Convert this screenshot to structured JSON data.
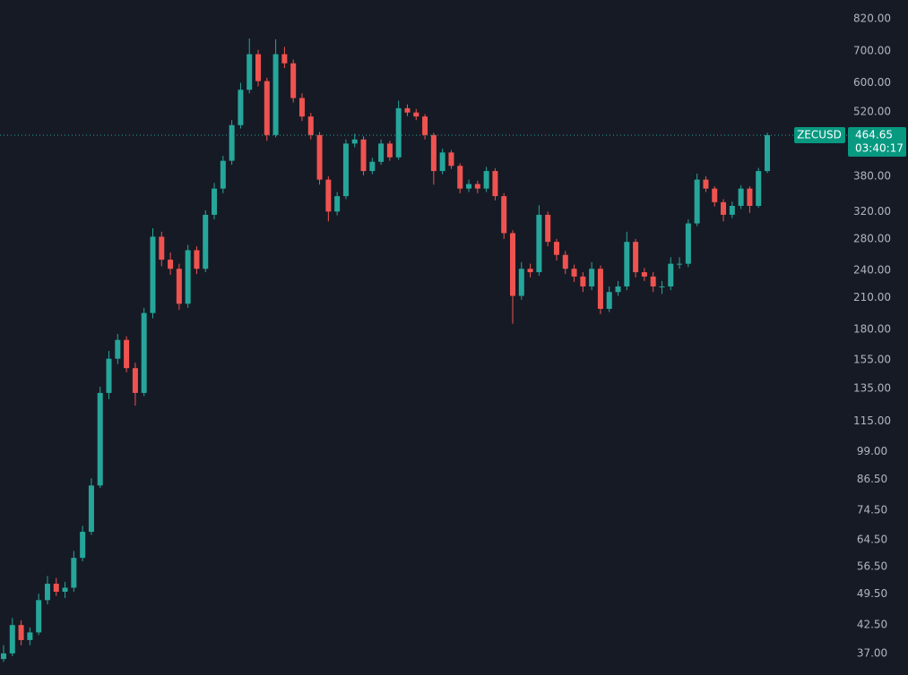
{
  "chart_data": {
    "type": "candlestick",
    "symbol": "ZECUSD",
    "countdown": "03:40:17",
    "last_price": 464.65,
    "log_scale": true,
    "grid": false,
    "up_color": "#26a69a",
    "down_color": "#ef5350",
    "ylim": [
      33.3,
      899
    ],
    "yticks": [
      {
        "value": 820,
        "label": "820.00"
      },
      {
        "value": 700,
        "label": "700.00"
      },
      {
        "value": 600,
        "label": "600.00"
      },
      {
        "value": 520,
        "label": "520.00"
      },
      {
        "value": 380,
        "label": "380.00"
      },
      {
        "value": 320,
        "label": "320.00"
      },
      {
        "value": 280,
        "label": "280.00"
      },
      {
        "value": 240,
        "label": "240.00"
      },
      {
        "value": 210,
        "label": "210.00"
      },
      {
        "value": 180,
        "label": "180.00"
      },
      {
        "value": 155,
        "label": "155.00"
      },
      {
        "value": 135,
        "label": "135.00"
      },
      {
        "value": 115,
        "label": "115.00"
      },
      {
        "value": 99,
        "label": "99.00"
      },
      {
        "value": 86.5,
        "label": "86.50"
      },
      {
        "value": 74.5,
        "label": "74.50"
      },
      {
        "value": 64.5,
        "label": "64.50"
      },
      {
        "value": 56.5,
        "label": "56.50"
      },
      {
        "value": 49.5,
        "label": "49.50"
      },
      {
        "value": 42.5,
        "label": "42.50"
      },
      {
        "value": 37,
        "label": "37.00"
      }
    ],
    "open": [
      36,
      37,
      42.5,
      39.5,
      41,
      48,
      52,
      50,
      51,
      59,
      67,
      84,
      132,
      156,
      171,
      149,
      132,
      195,
      283,
      253,
      242,
      204,
      265,
      242,
      315,
      358,
      410,
      488,
      580,
      690,
      605,
      465,
      690,
      660,
      557,
      509,
      465,
      374,
      320,
      345,
      446,
      455,
      390,
      408,
      446,
      417,
      530,
      519,
      509,
      465,
      390,
      427,
      400,
      358,
      366,
      358,
      390,
      345,
      288,
      212,
      242,
      238,
      315,
      276,
      259,
      242,
      233,
      222,
      242,
      199,
      216,
      222,
      276,
      238,
      233,
      222,
      222,
      248,
      248,
      302,
      374,
      358,
      335,
      315,
      329,
      358,
      329,
      390
    ],
    "high": [
      38.5,
      44,
      43.5,
      42,
      49.5,
      54,
      53.5,
      52.5,
      61,
      69,
      87,
      136,
      162,
      176,
      174,
      153,
      200,
      295,
      290,
      262,
      248,
      272,
      270,
      322,
      368,
      420,
      500,
      600,
      745,
      705,
      615,
      742,
      715,
      672,
      570,
      518,
      472,
      380,
      352,
      455,
      468,
      462,
      416,
      455,
      452,
      550,
      540,
      528,
      515,
      470,
      435,
      432,
      405,
      374,
      372,
      398,
      395,
      350,
      292,
      250,
      248,
      330,
      320,
      280,
      264,
      247,
      238,
      250,
      246,
      222,
      228,
      290,
      280,
      243,
      238,
      228,
      256,
      256,
      308,
      385,
      380,
      362,
      340,
      336,
      364,
      362,
      396,
      470
    ],
    "low": [
      35.5,
      36.5,
      38.5,
      38.5,
      40.5,
      47,
      49,
      48.5,
      50,
      58,
      66,
      83,
      128,
      152,
      146,
      124,
      130,
      190,
      245,
      235,
      198,
      200,
      236,
      238,
      308,
      350,
      402,
      480,
      570,
      590,
      452,
      460,
      645,
      545,
      498,
      455,
      365,
      305,
      314,
      340,
      438,
      382,
      384,
      402,
      410,
      412,
      510,
      500,
      455,
      365,
      384,
      394,
      350,
      352,
      350,
      352,
      338,
      280,
      185,
      208,
      232,
      234,
      270,
      252,
      236,
      227,
      216,
      218,
      194,
      196,
      212,
      218,
      232,
      228,
      216,
      214,
      218,
      242,
      244,
      298,
      352,
      328,
      305,
      310,
      324,
      318,
      326,
      386
    ],
    "close": [
      37,
      42.5,
      39.5,
      41,
      48,
      52,
      50,
      51,
      59,
      67,
      84,
      132,
      156,
      171,
      149,
      132,
      195,
      283,
      253,
      242,
      204,
      265,
      242,
      315,
      358,
      410,
      488,
      580,
      690,
      605,
      465,
      690,
      660,
      557,
      509,
      465,
      374,
      320,
      345,
      446,
      455,
      390,
      408,
      446,
      417,
      530,
      519,
      509,
      465,
      390,
      427,
      400,
      358,
      366,
      358,
      390,
      345,
      288,
      212,
      242,
      238,
      315,
      276,
      259,
      242,
      233,
      222,
      242,
      199,
      216,
      222,
      276,
      238,
      233,
      222,
      222,
      248,
      248,
      302,
      374,
      358,
      335,
      315,
      329,
      358,
      329,
      390,
      464.65
    ]
  }
}
